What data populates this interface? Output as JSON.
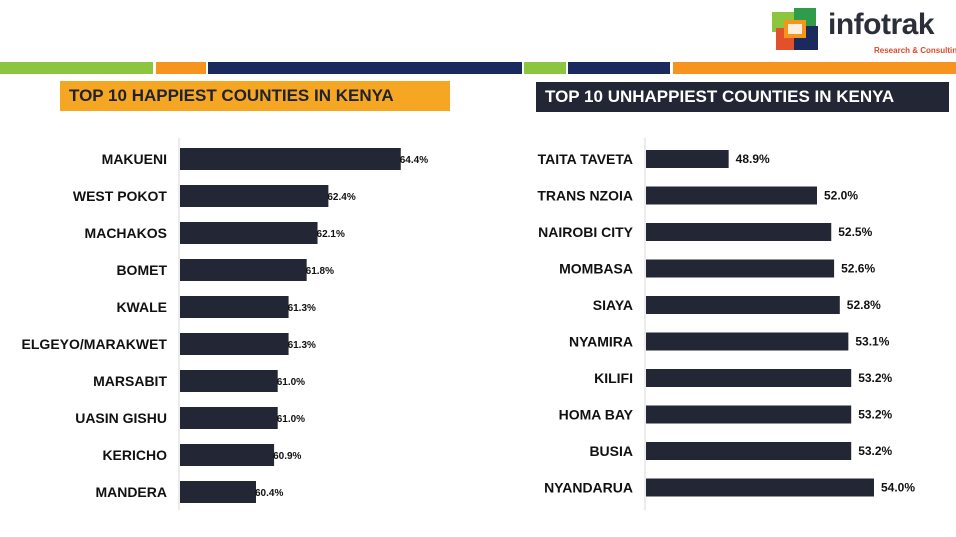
{
  "logo": {
    "name": "infotrak",
    "tagline": "Research & Consulting"
  },
  "colors": {
    "bar": "#232634",
    "accent_orange": "#f5a623",
    "stripe_green": "#8cc63f",
    "stripe_orange": "#f7941d",
    "stripe_navy": "#1b2a5c"
  },
  "chart_data": [
    {
      "type": "bar",
      "orientation": "horizontal",
      "title": "TOP 10 HAPPIEST COUNTIES IN KENYA",
      "categories": [
        "MAKUENI",
        "WEST POKOT",
        "MACHAKOS",
        "BOMET",
        "KWALE",
        "ELGEYO/MARAKWET",
        "MARSABIT",
        "UASIN GISHU",
        "KERICHO",
        "MANDERA"
      ],
      "values": [
        64.4,
        62.4,
        62.1,
        61.8,
        61.3,
        61.3,
        61.0,
        61.0,
        60.9,
        60.4
      ],
      "labels": [
        "64.4%",
        "62.4%",
        "62.1%",
        "61.8%",
        "61.3%",
        "61.3%",
        "61.0%",
        "61.0%",
        "60.9%",
        "60.4%"
      ],
      "unit": "%",
      "xlim": [
        58.3,
        64.6
      ]
    },
    {
      "type": "bar",
      "orientation": "horizontal",
      "title": "TOP 10 UNHAPPIEST COUNTIES IN KENYA",
      "categories": [
        "TAITA TAVETA",
        "TRANS NZOIA",
        "NAIROBI CITY",
        "MOMBASA",
        "SIAYA",
        "NYAMIRA",
        "KILIFI",
        "HOMA BAY",
        "BUSIA",
        "NYANDARUA"
      ],
      "values": [
        48.9,
        52.0,
        52.5,
        52.6,
        52.8,
        53.1,
        53.2,
        53.2,
        53.2,
        54.0
      ],
      "labels": [
        "48.9%",
        "52.0%",
        "52.5%",
        "52.6%",
        "52.8%",
        "53.1%",
        "53.2%",
        "53.2%",
        "53.2%",
        "54.0%"
      ],
      "unit": "%",
      "xlim": [
        46.0,
        54.0
      ]
    }
  ]
}
